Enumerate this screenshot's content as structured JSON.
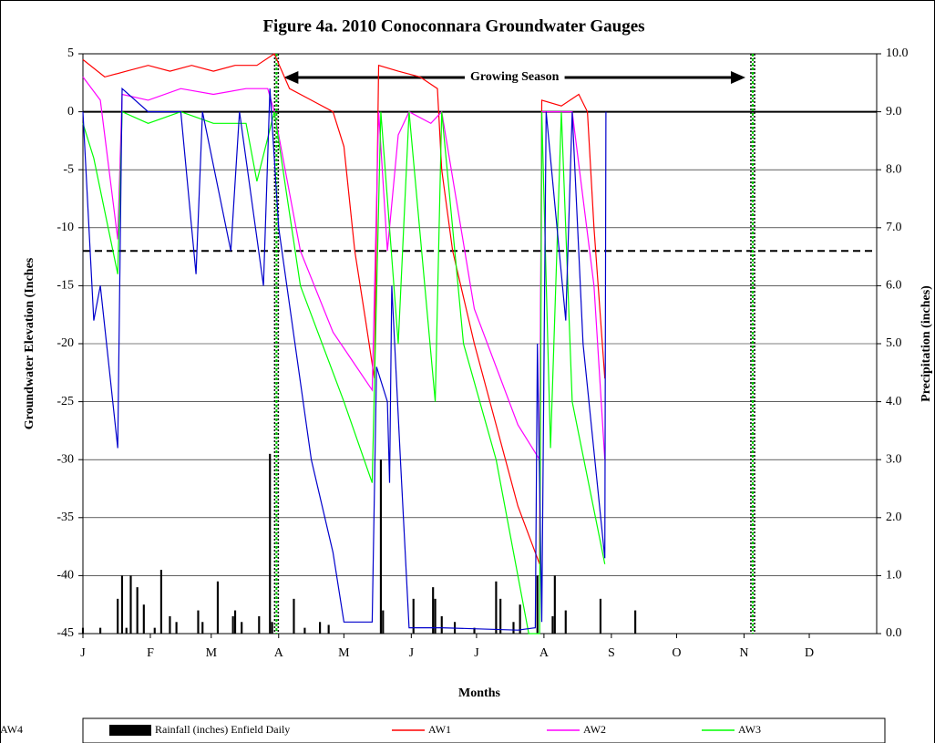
{
  "chart_data": {
    "type": "line",
    "title": "Figure 4a.  2010 Conoconnara Groundwater Gauges",
    "x_label": "Months",
    "y_label": "Groundwater Elevation (Inches",
    "y2_label": "Precipitation (inches)",
    "annotation": "Growing Season",
    "xlim": [
      0,
      365
    ],
    "xticks": [
      {
        "value": 0,
        "label": "J"
      },
      {
        "value": 31,
        "label": "F"
      },
      {
        "value": 59,
        "label": "M"
      },
      {
        "value": 90,
        "label": "A"
      },
      {
        "value": 120,
        "label": "M"
      },
      {
        "value": 151,
        "label": "J"
      },
      {
        "value": 181,
        "label": "J"
      },
      {
        "value": 212,
        "label": "A"
      },
      {
        "value": 243,
        "label": "S"
      },
      {
        "value": 273,
        "label": "O"
      },
      {
        "value": 304,
        "label": "N"
      },
      {
        "value": 334,
        "label": "D"
      }
    ],
    "ylim": [
      -45,
      5
    ],
    "yticks": [
      -45,
      -40,
      -35,
      -30,
      -25,
      -20,
      -15,
      -10,
      -5,
      0,
      5
    ],
    "y2lim": [
      0,
      10
    ],
    "y2ticks": [
      {
        "value": 0,
        "label": "0.0"
      },
      {
        "value": 1,
        "label": "1.0"
      },
      {
        "value": 2,
        "label": "2.0"
      },
      {
        "value": 3,
        "label": "3.0"
      },
      {
        "value": 4,
        "label": "4.0"
      },
      {
        "value": 5,
        "label": "5.0"
      },
      {
        "value": 6,
        "label": "6.0"
      },
      {
        "value": 7,
        "label": "7.0"
      },
      {
        "value": 8,
        "label": "8.0"
      },
      {
        "value": 9,
        "label": "9.0"
      },
      {
        "value": 10,
        "label": "10.0"
      }
    ],
    "grid": true,
    "hlines": [
      0,
      -12
    ],
    "vlines": [
      89,
      308
    ],
    "series": [
      {
        "name": "Rainfall (inches) Enfield Daily",
        "type": "bar",
        "axis": "y2",
        "color": "#000000",
        "x": [
          0,
          8,
          16,
          18,
          20,
          22,
          25,
          28,
          33,
          36,
          40,
          43,
          53,
          55,
          62,
          69,
          70,
          73,
          81,
          86,
          87,
          97,
          102,
          109,
          113,
          137,
          138,
          152,
          161,
          162,
          165,
          171,
          180,
          190,
          192,
          198,
          201,
          209,
          216,
          217,
          222,
          238,
          254
        ],
        "values": [
          0.1,
          0.1,
          0.6,
          1.0,
          0.1,
          1.0,
          0.8,
          0.5,
          0.1,
          1.1,
          0.3,
          0.2,
          0.4,
          0.2,
          0.9,
          0.3,
          0.4,
          0.2,
          0.3,
          3.1,
          0.2,
          0.6,
          0.1,
          0.2,
          0.15,
          3.0,
          0.4,
          0.6,
          0.8,
          0.6,
          0.3,
          0.2,
          0.1,
          0.9,
          0.6,
          0.2,
          0.5,
          1.0,
          0.3,
          1.0,
          0.4,
          0.6,
          0.4
        ]
      },
      {
        "name": "AW1",
        "color": "#ff0000",
        "x": [
          0,
          10,
          20,
          30,
          40,
          50,
          60,
          70,
          80,
          88,
          95,
          105,
          115,
          120,
          125,
          130,
          134,
          136,
          145,
          155,
          163,
          165,
          170,
          180,
          190,
          200,
          210,
          211,
          220,
          228,
          232,
          235,
          240
        ],
        "values": [
          4.5,
          3,
          3.5,
          4,
          3.5,
          4,
          3.5,
          4,
          4,
          5,
          2,
          1,
          0,
          -3,
          -12,
          -18,
          -23,
          4,
          3.5,
          3,
          2,
          -5,
          -12,
          -20,
          -27,
          -34,
          -39,
          1,
          0.5,
          1.5,
          0,
          -10,
          -23
        ]
      },
      {
        "name": "AW2",
        "color": "#ff00ff",
        "x": [
          0,
          8,
          16,
          18,
          30,
          45,
          60,
          75,
          85,
          88,
          100,
          115,
          133,
          136,
          140,
          145,
          150,
          160,
          165,
          180,
          200,
          210,
          211,
          225,
          235,
          240
        ],
        "values": [
          3,
          1,
          -11,
          1.5,
          1,
          2,
          1.5,
          2,
          2,
          0,
          -12,
          -19,
          -24,
          0,
          -12,
          -2,
          0,
          -1,
          0,
          -17,
          -27,
          -30,
          0,
          0,
          -15,
          -30
        ]
      },
      {
        "name": "AW3",
        "color": "#00ff00",
        "x": [
          0,
          5,
          16,
          18,
          30,
          45,
          60,
          75,
          80,
          88,
          100,
          120,
          133,
          137,
          145,
          150,
          162,
          165,
          175,
          190,
          205,
          210,
          211,
          215,
          220,
          225,
          240
        ],
        "values": [
          -1,
          -4,
          -14,
          0,
          -1,
          0,
          -1,
          -1,
          -6,
          0,
          -15,
          -25,
          -32,
          0,
          -20,
          0,
          -25,
          0,
          -20,
          -30,
          -45,
          -45,
          0,
          -29,
          0,
          -25,
          -39
        ]
      },
      {
        "name": "AW4",
        "color": "#0000cc",
        "x": [
          0,
          5,
          8,
          16,
          18,
          30,
          45,
          50,
          52,
          55,
          68,
          72,
          83,
          86,
          90,
          105,
          115,
          120,
          133,
          135,
          140,
          141,
          142,
          146,
          150,
          165,
          200,
          208,
          209,
          211,
          213,
          222,
          225,
          230,
          240,
          240.5
        ],
        "values": [
          0,
          -18,
          -15,
          -29,
          2,
          0,
          0,
          -10,
          -14,
          0,
          -12,
          0,
          -15,
          2,
          -10,
          -30,
          -38,
          -44,
          -44,
          -22,
          -25,
          -32,
          -15,
          -30,
          -44.5,
          -44.5,
          -44.7,
          -44.5,
          -20,
          -44,
          0,
          -18,
          0,
          -20,
          -38.5,
          0
        ]
      }
    ]
  }
}
